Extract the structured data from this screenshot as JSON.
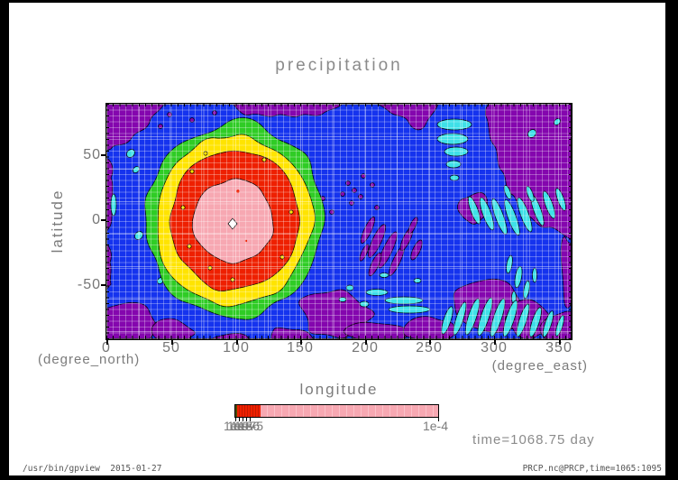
{
  "title": "precipitation",
  "plot": {
    "ylabel": "latitude",
    "xlabel": "longitude",
    "y_unit": "(degree_north)",
    "x_unit": "(degree_east)",
    "x_ticks": [
      "0",
      "50",
      "100",
      "150",
      "200",
      "250",
      "300",
      "350"
    ],
    "y_ticks": [
      "50",
      "0",
      "-50"
    ],
    "time_label": "time=1068.75 day"
  },
  "colorbar": {
    "left_labels": [
      "1e-9",
      "1e-8",
      "1e-7",
      "1e-6",
      "1e-5"
    ],
    "right_label": "1e-4"
  },
  "footer": {
    "left": "/usr/bin/gpview  2015-01-27",
    "right": "PRCP.nc@PRCP,time=1065:1095"
  },
  "colors": {
    "purple": "#8406AE",
    "blue": "#1533EE",
    "cyan": "#3FE0E8",
    "green": "#2FCC25",
    "yellow": "#FFE400",
    "red": "#EE2000",
    "pink": "#F7A8B2",
    "white": "#FFFFFF",
    "frame": "#000000",
    "text_gray": "#7c7c7c"
  },
  "chart_data": {
    "type": "filled_contour",
    "title": "precipitation",
    "xlabel": "longitude (degree_east)",
    "ylabel": "latitude (degree_north)",
    "xlim": [
      0,
      360
    ],
    "ylim": [
      -90,
      90
    ],
    "x_ticks": [
      0,
      50,
      100,
      150,
      200,
      250,
      300,
      350
    ],
    "y_ticks": [
      -50,
      0,
      50
    ],
    "grid": true,
    "legend_position": "bottom colorbar",
    "contour_levels": [
      "1e-9",
      "1e-8",
      "1e-7",
      "1e-6",
      "1e-5",
      "1e-4"
    ],
    "level_fill_colors": [
      {
        "range": "< 1e-9",
        "color": "#8406AE"
      },
      {
        "range": "1e-9 to 1e-8",
        "color": "#1533EE"
      },
      {
        "range": "1e-8 to 1e-7",
        "color": "#3FE0E8"
      },
      {
        "range": "1e-7 to 1e-6",
        "color": "#2FCC25"
      },
      {
        "range": "1e-6 to 1e-5",
        "color": "#FFE400"
      },
      {
        "range": "1e-5 to 1e-4",
        "color": "#EE2000"
      },
      {
        "range": "> 1e-4",
        "color": "#F7A8B2"
      }
    ],
    "annotations": [
      "time=1068.75 day"
    ],
    "features": [
      {
        "name": "precipitation-maximum",
        "center_lon": 100,
        "center_lat": 0,
        "description": "Large concentric maximum: pink core (>1e-4) spanning lon 65-130 / lat -30..30, surrounded by red ring to lon 30-155 / lat -65..65, then yellow, green rings reaching lat -80..80"
      },
      {
        "name": "equatorial-wave-train",
        "description": "Cyan patches (1e-8..1e-7) in diagonal trains over lon 250-360 near lat -40..40, plus a stack of cyan ellipses near lon 258 / lat 20..50"
      },
      {
        "name": "dry-regions",
        "description": "Purple (<1e-9) areas along the polar boundaries, upper-right quadrant lon 270-360 / lat 30..90, streaky patches lon 185-250 / lat -45..0 and along lat -90"
      }
    ]
  }
}
